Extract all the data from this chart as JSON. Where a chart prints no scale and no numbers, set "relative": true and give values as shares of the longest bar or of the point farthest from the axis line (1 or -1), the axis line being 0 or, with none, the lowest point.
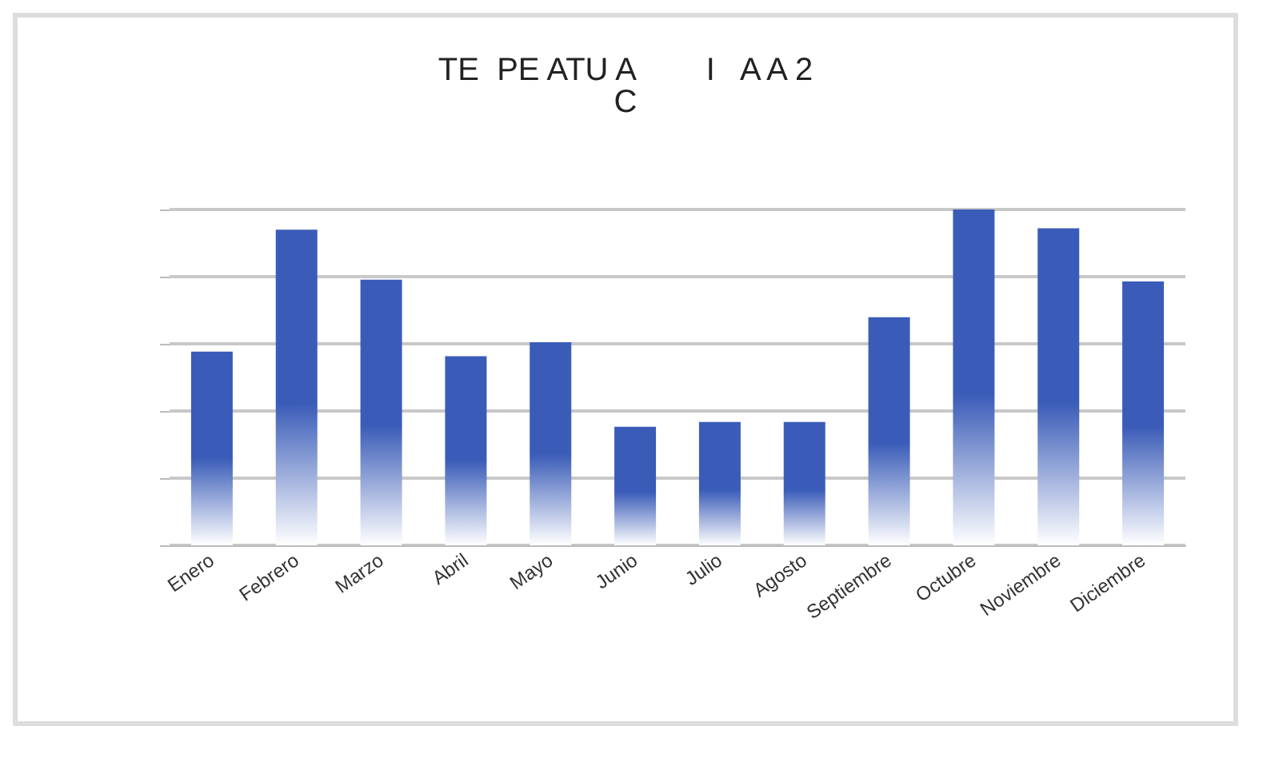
{
  "chart_data": {
    "type": "bar",
    "title": "TE  PE ATU A        I   A A 2\nC",
    "categories": [
      "Enero",
      "Febrero",
      "Marzo",
      "Abril",
      "Mayo",
      "Junio",
      "Julio",
      "Agosto",
      "Septiembre",
      "Octubre",
      "Noviembre",
      "Diciembre"
    ],
    "values": [
      0.577,
      0.94,
      0.791,
      0.563,
      0.605,
      0.353,
      0.367,
      0.367,
      0.679,
      1,
      0.944,
      0.786
    ],
    "color": "#3a5cb8",
    "relative": true,
    "grid": "y"
  }
}
